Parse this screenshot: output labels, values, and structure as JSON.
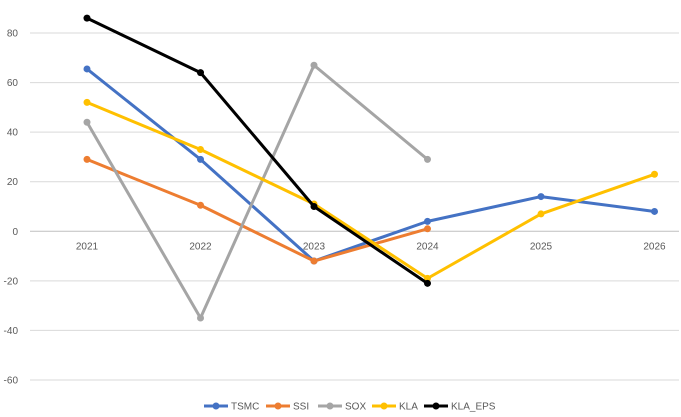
{
  "chart_data": {
    "type": "line",
    "title": "",
    "xlabel": "",
    "ylabel": "",
    "categories": [
      "2021",
      "2022",
      "2023",
      "2024",
      "2025",
      "2026"
    ],
    "ylim": [
      -60,
      80
    ],
    "yticks": [
      80,
      60,
      40,
      20,
      0,
      -20,
      -40,
      -60
    ],
    "grid": true,
    "legend_position": "bottom",
    "series": [
      {
        "name": "TSMC",
        "color": "#4472C4",
        "values": [
          65.5,
          29,
          -12,
          4,
          14,
          8
        ]
      },
      {
        "name": "SSI",
        "color": "#ED7D31",
        "values": [
          29,
          10.5,
          -12,
          1,
          null,
          null
        ]
      },
      {
        "name": "SOX",
        "color": "#A5A5A5",
        "values": [
          44,
          -35,
          67,
          29,
          null,
          null
        ]
      },
      {
        "name": "KLA",
        "color": "#FFC000",
        "values": [
          52,
          33,
          11,
          -19,
          7,
          23
        ]
      },
      {
        "name": "KLA_EPS",
        "color": "#000000",
        "values": [
          86,
          64,
          10,
          -21,
          null,
          null
        ]
      }
    ]
  }
}
